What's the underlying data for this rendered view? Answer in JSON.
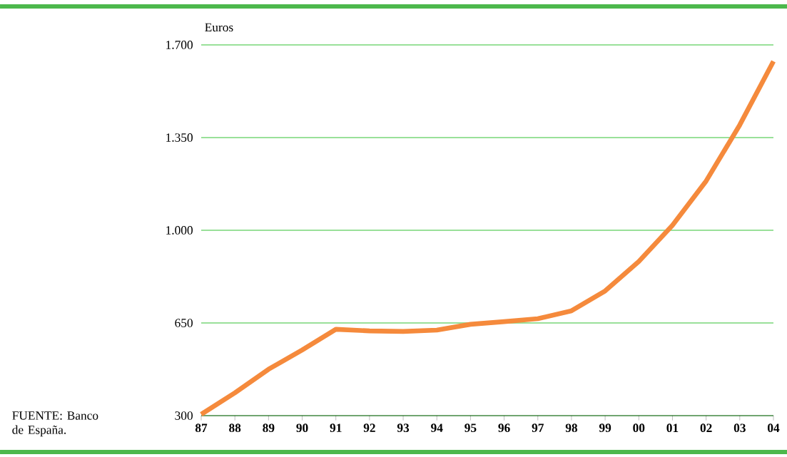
{
  "chart_data": {
    "type": "line",
    "ylabel": "Euros",
    "categories": [
      "87",
      "88",
      "89",
      "90",
      "91",
      "92",
      "93",
      "94",
      "95",
      "96",
      "97",
      "98",
      "99",
      "00",
      "01",
      "02",
      "03",
      "04"
    ],
    "series": [
      {
        "color": "#f58a3c",
        "values": [
          305,
          386,
          475,
          548,
          626,
          620,
          618,
          623,
          645,
          655,
          666,
          696,
          771,
          882,
          1019,
          1186,
          1398,
          1638
        ]
      }
    ],
    "ylim": [
      300,
      1700
    ],
    "yticks": [
      {
        "value": 300,
        "label": "300"
      },
      {
        "value": 650,
        "label": "650"
      },
      {
        "value": 1000,
        "label": "1.000"
      },
      {
        "value": 1350,
        "label": "1.350"
      },
      {
        "value": 1700,
        "label": "1.700"
      }
    ],
    "grid": "y",
    "marker": "none",
    "line_style": "solid",
    "annotations": [
      "FUENTE: Banco de España."
    ]
  }
}
